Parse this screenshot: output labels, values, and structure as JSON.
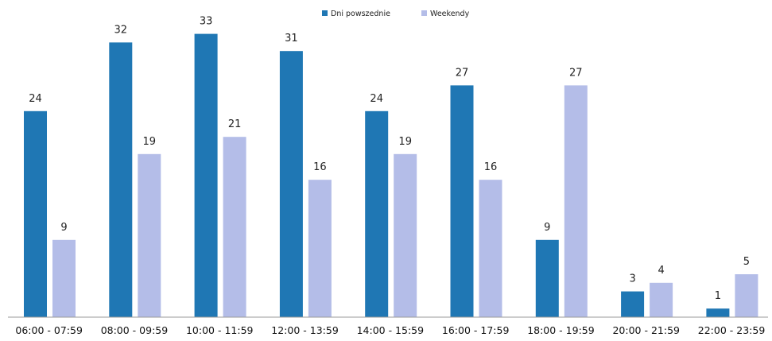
{
  "chart_data": {
    "type": "bar",
    "categories": [
      "06:00 - 07:59",
      "08:00 - 09:59",
      "10:00 - 11:59",
      "12:00 - 13:59",
      "14:00 - 15:59",
      "16:00 - 17:59",
      "18:00 - 19:59",
      "20:00 - 21:59",
      "22:00 - 23:59"
    ],
    "series": [
      {
        "name": "Dni powszednie",
        "values": [
          24,
          32,
          33,
          31,
          24,
          27,
          9,
          3,
          1
        ],
        "color": "#1f77b4"
      },
      {
        "name": "Weekendy",
        "values": [
          9,
          19,
          21,
          16,
          19,
          16,
          27,
          4,
          5
        ],
        "color": "#b4bde8"
      }
    ],
    "title": "",
    "xlabel": "",
    "ylabel": "",
    "ylim": [
      0,
      35
    ],
    "grid": false,
    "legend": "top-center",
    "data_labels": true
  }
}
